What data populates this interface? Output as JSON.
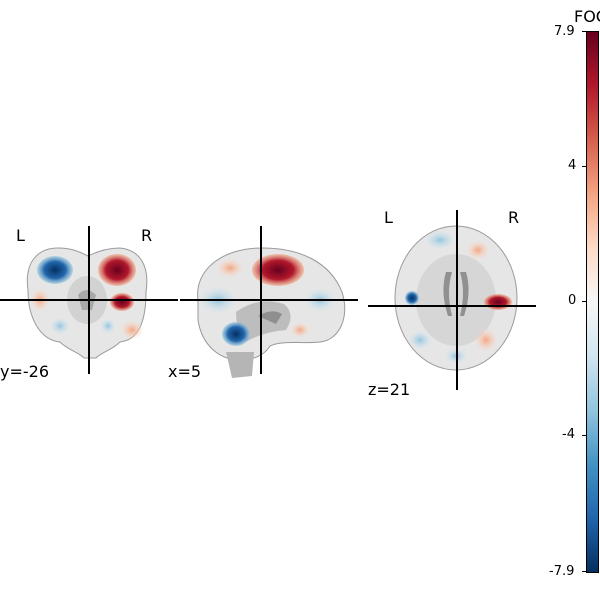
{
  "colorbar": {
    "title": "FOC",
    "ticks": [
      "7.9",
      "4",
      "0",
      "-4",
      "-7.9"
    ],
    "range": [
      -7.9,
      7.9
    ],
    "colors": [
      "#053061",
      "#2166ac",
      "#4393c3",
      "#92c5de",
      "#d1e5f0",
      "#f7f7f7",
      "#fddbc7",
      "#f4a582",
      "#d6604d",
      "#b2182b",
      "#67001f"
    ]
  },
  "views": {
    "coronal": {
      "coord": "y=-26",
      "left": "L",
      "right": "R"
    },
    "sagittal": {
      "coord": "x=5"
    },
    "axial": {
      "coord": "z=21",
      "left": "L",
      "right": "R"
    }
  }
}
